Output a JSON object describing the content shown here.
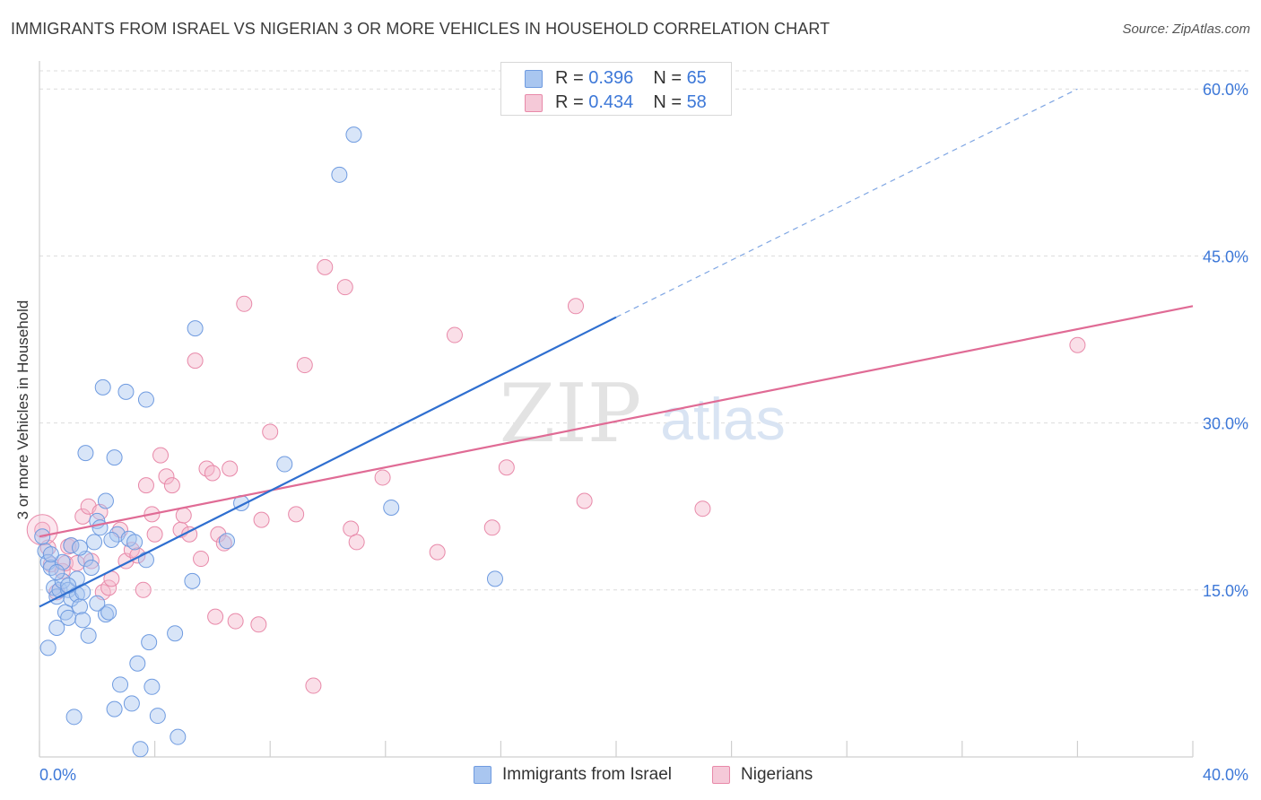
{
  "title": "IMMIGRANTS FROM ISRAEL VS NIGERIAN 3 OR MORE VEHICLES IN HOUSEHOLD CORRELATION CHART",
  "source": "Source: ZipAtlas.com",
  "watermark": {
    "zip": "ZIP",
    "atlas": "atlas"
  },
  "colors": {
    "israel_fill": "#a9c6f0",
    "israel_stroke": "#6f9be0",
    "israel_line": "#2f6fd0",
    "nigerian_fill": "#f5b8cd",
    "nigerian_stroke": "#e889a9",
    "nigerian_line": "#e06b95",
    "axis_text": "#3d78d8",
    "grid": "#dcdcdc"
  },
  "legend": {
    "israel": {
      "r_label": "R = ",
      "r_value": "0.396",
      "n_label": "N = ",
      "n_value": "65"
    },
    "nigerian": {
      "r_label": "R = ",
      "r_value": "0.434",
      "n_label": "N = ",
      "n_value": "58"
    }
  },
  "chart_data": {
    "type": "scatter",
    "title": "IMMIGRANTS FROM ISRAEL VS NIGERIAN 3 OR MORE VEHICLES IN HOUSEHOLD CORRELATION CHART",
    "xlabel": "",
    "ylabel": "3 or more Vehicles in Household",
    "xlim": [
      0,
      40
    ],
    "ylim": [
      0,
      63
    ],
    "x_tick_labels": [
      "0.0%",
      "40.0%"
    ],
    "y_ticks": [
      15,
      30,
      45,
      60
    ],
    "y_tick_labels": [
      "15.0%",
      "30.0%",
      "45.0%",
      "60.0%"
    ],
    "grid": true,
    "legend_position": "top-center",
    "series": [
      {
        "name": "Immigrants from Israel",
        "r": 0.396,
        "n": 65,
        "trend": {
          "x0": 0,
          "y0": 13.5,
          "x1": 20,
          "y1": 39.5,
          "dashed_to_x": 36,
          "dashed_to_y": 60.0
        },
        "points": [
          [
            0.2,
            18.5
          ],
          [
            0.3,
            17.5
          ],
          [
            0.3,
            9.8
          ],
          [
            0.4,
            17.0
          ],
          [
            0.5,
            15.2
          ],
          [
            0.6,
            11.6
          ],
          [
            0.6,
            14.4
          ],
          [
            0.7,
            15.0
          ],
          [
            0.8,
            15.8
          ],
          [
            0.8,
            17.5
          ],
          [
            0.9,
            13.0
          ],
          [
            1.0,
            12.5
          ],
          [
            1.0,
            15.0
          ],
          [
            1.1,
            14.2
          ],
          [
            1.1,
            19.0
          ],
          [
            1.2,
            3.6
          ],
          [
            1.3,
            14.6
          ],
          [
            1.3,
            16.0
          ],
          [
            1.4,
            13.5
          ],
          [
            1.5,
            12.3
          ],
          [
            1.6,
            27.3
          ],
          [
            1.6,
            17.8
          ],
          [
            1.7,
            10.9
          ],
          [
            1.8,
            17.0
          ],
          [
            1.9,
            19.3
          ],
          [
            2.0,
            21.2
          ],
          [
            2.1,
            20.6
          ],
          [
            2.2,
            33.2
          ],
          [
            2.3,
            12.8
          ],
          [
            2.3,
            23.0
          ],
          [
            2.4,
            13.0
          ],
          [
            2.6,
            26.9
          ],
          [
            2.6,
            4.3
          ],
          [
            2.7,
            20.0
          ],
          [
            2.8,
            6.5
          ],
          [
            3.0,
            32.8
          ],
          [
            3.1,
            19.6
          ],
          [
            3.2,
            4.8
          ],
          [
            3.3,
            19.3
          ],
          [
            3.4,
            8.4
          ],
          [
            3.5,
            0.7
          ],
          [
            3.7,
            17.7
          ],
          [
            3.7,
            32.1
          ],
          [
            3.8,
            10.3
          ],
          [
            3.9,
            6.3
          ],
          [
            4.1,
            3.7
          ],
          [
            4.7,
            11.1
          ],
          [
            4.8,
            1.8
          ],
          [
            5.3,
            15.8
          ],
          [
            5.4,
            38.5
          ],
          [
            6.5,
            19.4
          ],
          [
            7.0,
            22.8
          ],
          [
            8.5,
            26.3
          ],
          [
            10.4,
            52.3
          ],
          [
            10.9,
            55.9
          ],
          [
            12.2,
            22.4
          ],
          [
            15.8,
            16.0
          ],
          [
            0.1,
            19.8
          ],
          [
            0.4,
            18.2
          ],
          [
            1.0,
            15.4
          ],
          [
            1.5,
            14.8
          ],
          [
            2.0,
            13.8
          ],
          [
            2.5,
            19.5
          ],
          [
            0.6,
            16.6
          ],
          [
            1.4,
            18.8
          ]
        ]
      },
      {
        "name": "Nigerians",
        "r": 0.434,
        "n": 58,
        "trend": {
          "x0": 0,
          "y0": 19.8,
          "x1": 40,
          "y1": 40.5
        },
        "points": [
          [
            0.1,
            20.4
          ],
          [
            0.3,
            18.8
          ],
          [
            0.4,
            17.3
          ],
          [
            0.6,
            14.8
          ],
          [
            0.8,
            16.7
          ],
          [
            0.9,
            17.4
          ],
          [
            1.0,
            18.9
          ],
          [
            1.1,
            19.0
          ],
          [
            1.3,
            17.4
          ],
          [
            1.5,
            21.6
          ],
          [
            1.7,
            22.5
          ],
          [
            1.8,
            17.6
          ],
          [
            2.1,
            22.0
          ],
          [
            2.2,
            14.8
          ],
          [
            2.4,
            15.2
          ],
          [
            2.5,
            16.0
          ],
          [
            2.8,
            20.4
          ],
          [
            3.0,
            17.6
          ],
          [
            3.2,
            18.6
          ],
          [
            3.4,
            18.1
          ],
          [
            3.6,
            15.0
          ],
          [
            3.7,
            24.4
          ],
          [
            3.9,
            21.8
          ],
          [
            4.0,
            20.0
          ],
          [
            4.2,
            27.1
          ],
          [
            4.4,
            25.2
          ],
          [
            4.6,
            24.4
          ],
          [
            4.9,
            20.4
          ],
          [
            5.0,
            21.7
          ],
          [
            5.2,
            20.0
          ],
          [
            5.4,
            35.6
          ],
          [
            5.6,
            17.8
          ],
          [
            5.8,
            25.9
          ],
          [
            6.0,
            25.5
          ],
          [
            6.1,
            12.6
          ],
          [
            6.2,
            20.0
          ],
          [
            6.4,
            19.2
          ],
          [
            6.6,
            25.9
          ],
          [
            6.8,
            12.2
          ],
          [
            7.1,
            40.7
          ],
          [
            7.6,
            11.9
          ],
          [
            7.7,
            21.3
          ],
          [
            8.0,
            29.2
          ],
          [
            8.9,
            21.8
          ],
          [
            9.2,
            35.2
          ],
          [
            9.5,
            6.4
          ],
          [
            9.9,
            44.0
          ],
          [
            10.6,
            42.2
          ],
          [
            10.8,
            20.5
          ],
          [
            11.0,
            19.3
          ],
          [
            11.9,
            25.1
          ],
          [
            13.8,
            18.4
          ],
          [
            14.4,
            37.9
          ],
          [
            15.7,
            20.6
          ],
          [
            16.2,
            26.0
          ],
          [
            18.6,
            40.5
          ],
          [
            18.9,
            23.0
          ],
          [
            23.0,
            22.3
          ]
        ]
      }
    ],
    "extra_points": {
      "nigerian_far": [
        36.0,
        37.0
      ]
    }
  },
  "bottom_legend": {
    "israel_label": "Immigrants from Israel",
    "nigerian_label": "Nigerians"
  }
}
